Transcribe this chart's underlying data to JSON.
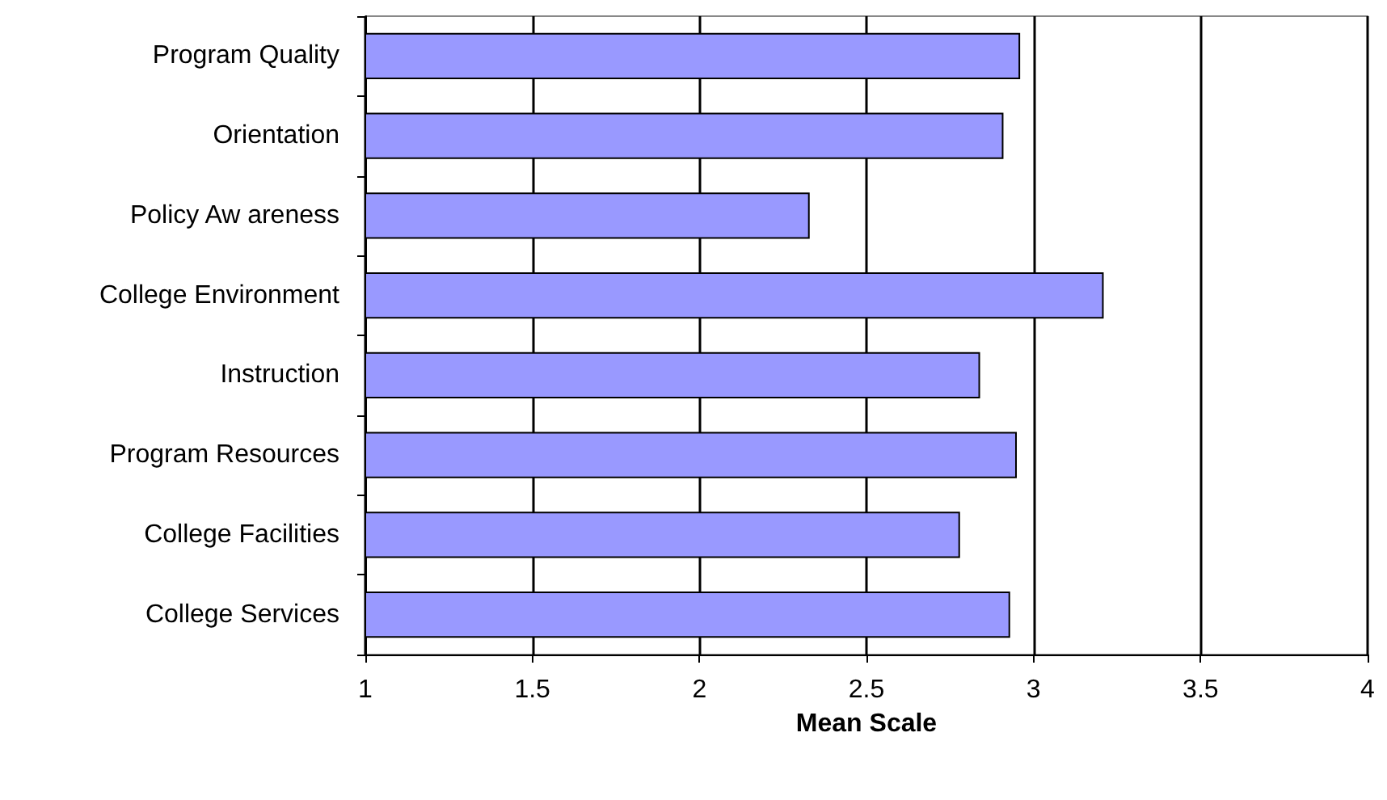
{
  "chart_data": {
    "type": "bar",
    "orientation": "horizontal",
    "xlabel": "Mean Scale",
    "categories": [
      "Program Quality",
      "Orientation",
      "Policy Aw areness",
      "College Environment",
      "Instruction",
      "Program Resources",
      "College Facilities",
      "College Services"
    ],
    "values": [
      2.96,
      2.91,
      2.33,
      3.21,
      2.84,
      2.95,
      2.78,
      2.93
    ],
    "color": "#9999ff",
    "xlim": [
      1,
      4
    ],
    "xticks": [
      1,
      1.5,
      2,
      2.5,
      3,
      3.5,
      4
    ],
    "grid": "x"
  }
}
